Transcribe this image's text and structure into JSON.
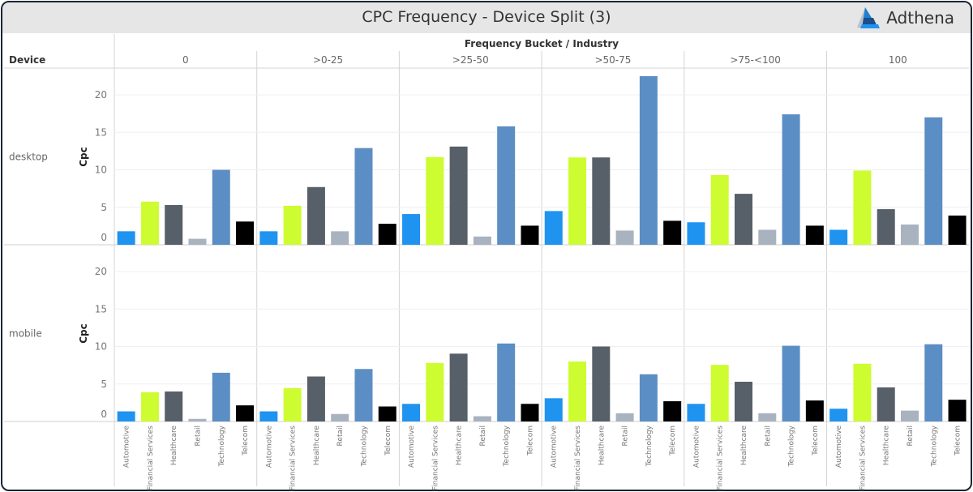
{
  "header": {
    "title": "CPC Frequency - Device Split (3)",
    "logo_text": "Adthena"
  },
  "chart_data": {
    "type": "bar",
    "column_header": "Frequency Bucket / Industry",
    "row_header": "Device",
    "ylabel": "Cpc",
    "ylim": [
      0,
      23
    ],
    "yticks": [
      "0",
      "5",
      "10",
      "15",
      "20"
    ],
    "grid": true,
    "buckets": [
      "0",
      ">0-25",
      ">25-50",
      ">50-75",
      ">75-<100",
      "100"
    ],
    "categories": [
      "Automotive",
      "Financial Services",
      "Healthcare",
      "Retail",
      "Technology",
      "Telecom"
    ],
    "colors": {
      "Automotive": "#1f93f0",
      "Financial Services": "#cdfc30",
      "Healthcare": "#575f68",
      "Retail": "#a9b3bf",
      "Technology": "#5b8ec4",
      "Telecom": "#000000"
    },
    "rows": [
      {
        "device": "desktop",
        "values": [
          [
            1.8,
            5.75,
            5.3,
            0.8,
            10.0,
            3.1
          ],
          [
            1.8,
            5.2,
            7.7,
            1.8,
            12.9,
            2.8
          ],
          [
            4.1,
            11.7,
            13.1,
            1.1,
            15.8,
            2.55
          ],
          [
            4.5,
            11.65,
            11.65,
            1.9,
            22.5,
            3.2
          ],
          [
            3.0,
            9.3,
            6.8,
            2.0,
            17.4,
            2.55
          ],
          [
            2.0,
            9.9,
            4.75,
            2.7,
            17.0,
            3.9
          ]
        ]
      },
      {
        "device": "mobile",
        "values": [
          [
            1.35,
            3.9,
            4.0,
            0.35,
            6.5,
            2.15
          ],
          [
            1.35,
            4.45,
            6.0,
            1.0,
            7.0,
            2.0
          ],
          [
            2.35,
            7.8,
            9.05,
            0.7,
            10.4,
            2.35
          ],
          [
            3.1,
            8.0,
            10.0,
            1.1,
            6.3,
            2.7
          ],
          [
            2.35,
            7.55,
            5.3,
            1.1,
            10.1,
            2.8
          ],
          [
            1.7,
            7.7,
            4.55,
            1.45,
            10.3,
            2.9
          ]
        ]
      }
    ]
  }
}
